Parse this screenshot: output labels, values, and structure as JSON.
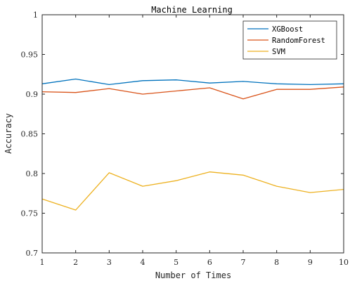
{
  "chart_data": {
    "type": "line",
    "title": "Machine Learning",
    "xlabel": "Number of Times",
    "ylabel": "Accuracy",
    "x": [
      1,
      2,
      3,
      4,
      5,
      6,
      7,
      8,
      9,
      10
    ],
    "xlim": [
      1,
      10
    ],
    "ylim": [
      0.7,
      1.0
    ],
    "xticks": [
      "1",
      "2",
      "3",
      "4",
      "5",
      "6",
      "7",
      "8",
      "9",
      "10"
    ],
    "yticks": [
      {
        "value": 0.7,
        "label": "0.7"
      },
      {
        "value": 0.75,
        "label": "0.75"
      },
      {
        "value": 0.8,
        "label": "0.8"
      },
      {
        "value": 0.85,
        "label": "0.85"
      },
      {
        "value": 0.9,
        "label": "0.9"
      },
      {
        "value": 0.95,
        "label": "0.95"
      },
      {
        "value": 1.0,
        "label": "1"
      }
    ],
    "grid": false,
    "legend_position": "top-right",
    "series": [
      {
        "name": "XGBoost",
        "color": "#0072BD",
        "values": [
          0.913,
          0.919,
          0.912,
          0.917,
          0.918,
          0.914,
          0.916,
          0.913,
          0.912,
          0.913
        ]
      },
      {
        "name": "RandomForest",
        "color": "#D95319",
        "values": [
          0.903,
          0.902,
          0.907,
          0.9,
          0.904,
          0.908,
          0.894,
          0.906,
          0.906,
          0.909
        ]
      },
      {
        "name": "SVM",
        "color": "#EDB120",
        "values": [
          0.768,
          0.754,
          0.801,
          0.784,
          0.791,
          0.802,
          0.798,
          0.784,
          0.776,
          0.78
        ]
      }
    ]
  }
}
